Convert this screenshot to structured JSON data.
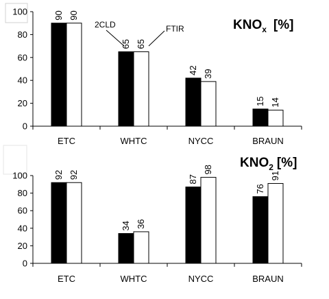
{
  "chart_data": [
    {
      "type": "bar",
      "title_main": "KNO",
      "title_sub": "x",
      "title_tail": "[%]",
      "categories": [
        "ETC",
        "WHTC",
        "NYCC",
        "BRAUN"
      ],
      "series": [
        {
          "name": "2CLD",
          "values": [
            90,
            65,
            42,
            15
          ],
          "color": "#000000"
        },
        {
          "name": "FTIR",
          "values": [
            90,
            65,
            39,
            14
          ],
          "color": "#ffffff"
        }
      ],
      "ylim": [
        0,
        100
      ],
      "yticks": [
        0,
        20,
        40,
        60,
        80,
        100
      ],
      "grid": false,
      "annotations": [
        "2CLD",
        "FTIR"
      ]
    },
    {
      "type": "bar",
      "title_main": "KNO",
      "title_sub": "2",
      "title_tail": "[%]",
      "categories": [
        "ETC",
        "WHTC",
        "NYCC",
        "BRAUN"
      ],
      "series": [
        {
          "values": [
            92,
            34,
            87,
            76
          ],
          "color": "#000000"
        },
        {
          "values": [
            92,
            36,
            98,
            91
          ],
          "color": "#ffffff"
        }
      ],
      "ylim": [
        0,
        100
      ],
      "yticks": [
        0,
        20,
        40,
        60,
        80,
        100
      ],
      "grid": false
    }
  ]
}
